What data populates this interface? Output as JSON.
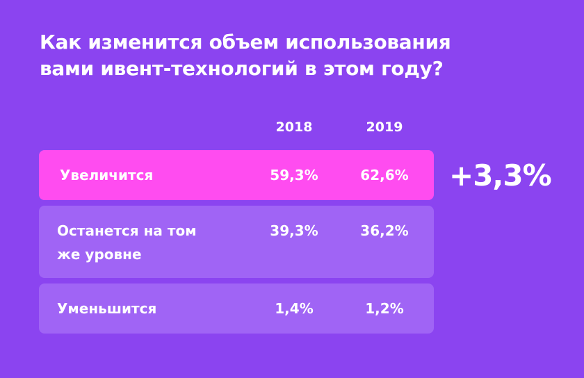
{
  "title_lines": [
    "Как изменится объем использования",
    "вами ивент-технологий в этом году?"
  ],
  "chart_data": {
    "type": "table",
    "title": "Как изменится объем использования вами ивент-технологий в этом году?",
    "columns": [
      "2018",
      "2019"
    ],
    "rows": [
      {
        "label": "Увеличится",
        "label_lines": [
          "Увеличится"
        ],
        "values": [
          "59,3%",
          "62,6%"
        ],
        "numeric": [
          59.3,
          62.6
        ],
        "highlighted": true
      },
      {
        "label": "Останется на том же уровне",
        "label_lines": [
          "Останется на том",
          "же уровне"
        ],
        "values": [
          "39,3%",
          "36,2%"
        ],
        "numeric": [
          39.3,
          36.2
        ],
        "highlighted": false
      },
      {
        "label": "Уменьшится",
        "label_lines": [
          "Уменьшится"
        ],
        "values": [
          "1,4%",
          "1,2%"
        ],
        "numeric": [
          1.4,
          1.2
        ],
        "highlighted": false
      }
    ],
    "annotation": "+3,3%"
  },
  "colors": {
    "background": "#8b44f0",
    "row": "#a064f5",
    "highlight": "#ff4cf0",
    "text": "#ffffff"
  }
}
